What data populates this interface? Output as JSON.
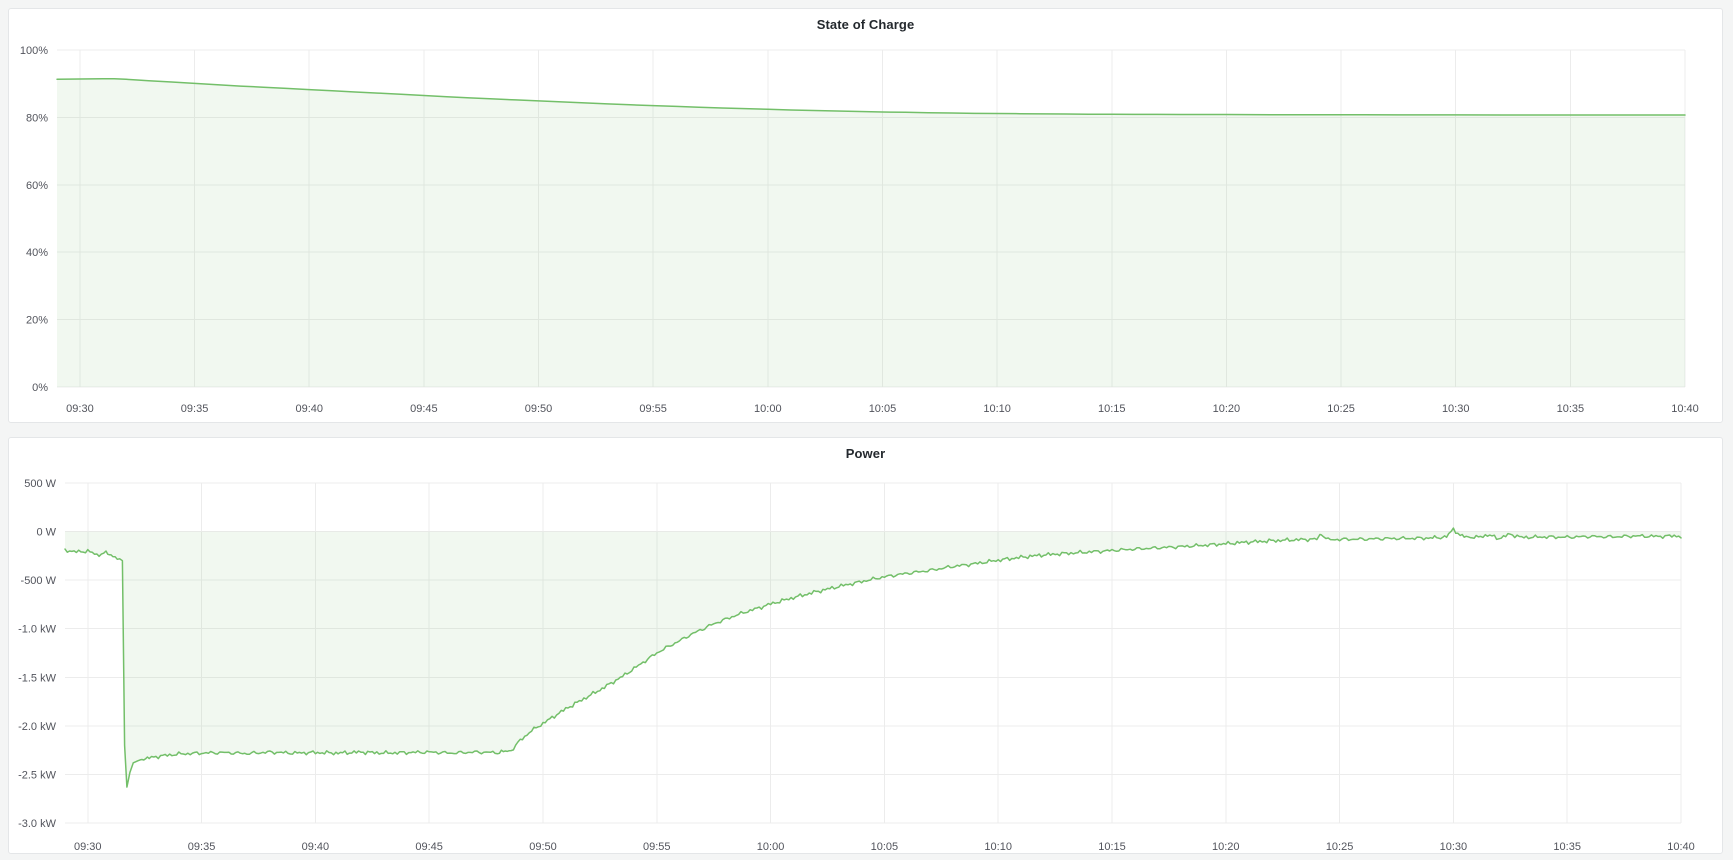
{
  "app": {
    "page_background": "#f4f5f5",
    "panel_background": "#ffffff",
    "panel_border_color": "#e4e6e8",
    "grid_color": "#ececec",
    "axis_text_color": "#52545c",
    "title_text_color": "#24292e",
    "accent_green": "#73bf69"
  },
  "chart_data": [
    {
      "type": "area",
      "title": "State of Charge",
      "unit": "percent",
      "legend": "none",
      "grid": true,
      "ylim": [
        0,
        100
      ],
      "x_domain_minutes_after_0930": [
        -1,
        70
      ],
      "x_tick_minutes": [
        0,
        5,
        10,
        15,
        20,
        25,
        30,
        35,
        40,
        45,
        50,
        55,
        60,
        65,
        70
      ],
      "x_tick_labels": [
        "09:30",
        "09:35",
        "09:40",
        "09:45",
        "09:50",
        "09:55",
        "10:00",
        "10:05",
        "10:10",
        "10:15",
        "10:20",
        "10:25",
        "10:30",
        "10:35",
        "10:40"
      ],
      "y_tick_values": [
        0,
        20,
        40,
        60,
        80,
        100
      ],
      "y_tick_labels": [
        "0%",
        "20%",
        "40%",
        "60%",
        "80%",
        "100%"
      ],
      "line_color": "#73bf69",
      "fill_color_rgba": "rgba(115,191,105,0.10)",
      "fill_to_value": 0,
      "x_minutes": [
        -1,
        0,
        1,
        1.5,
        2,
        2.5,
        3,
        4,
        5,
        6,
        7,
        8,
        9,
        10,
        11,
        12,
        13,
        14,
        15,
        16,
        17,
        18,
        19,
        20,
        21,
        22,
        23,
        24,
        25,
        26,
        27,
        28,
        29,
        30,
        31,
        32,
        33,
        34,
        35,
        36,
        37,
        38,
        39,
        40,
        41,
        42,
        43,
        44,
        45,
        46,
        47,
        48,
        49,
        50,
        52,
        54,
        56,
        58,
        60,
        62,
        64,
        66,
        68,
        70
      ],
      "values": [
        91.35,
        91.4,
        91.45,
        91.45,
        91.3,
        91.1,
        90.9,
        90.5,
        90.1,
        89.7,
        89.3,
        88.95,
        88.6,
        88.25,
        87.9,
        87.55,
        87.2,
        86.85,
        86.5,
        86.15,
        85.8,
        85.5,
        85.2,
        84.9,
        84.6,
        84.3,
        84.0,
        83.75,
        83.5,
        83.25,
        83.0,
        82.8,
        82.6,
        82.4,
        82.2,
        82.05,
        81.9,
        81.75,
        81.6,
        81.5,
        81.4,
        81.3,
        81.2,
        81.15,
        81.1,
        81.05,
        81.0,
        80.95,
        80.95,
        80.9,
        80.9,
        80.85,
        80.85,
        80.85,
        80.8,
        80.8,
        80.8,
        80.75,
        80.75,
        80.7,
        80.7,
        80.7,
        80.7,
        80.7
      ]
    },
    {
      "type": "area",
      "title": "Power",
      "unit": "watt",
      "legend": "none",
      "grid": true,
      "ylim": [
        -3000,
        500
      ],
      "x_domain_minutes_after_0930": [
        -1,
        70
      ],
      "x_tick_minutes": [
        0,
        5,
        10,
        15,
        20,
        25,
        30,
        35,
        40,
        45,
        50,
        55,
        60,
        65,
        70
      ],
      "x_tick_labels": [
        "09:30",
        "09:35",
        "09:40",
        "09:45",
        "09:50",
        "09:55",
        "10:00",
        "10:05",
        "10:10",
        "10:15",
        "10:20",
        "10:25",
        "10:30",
        "10:35",
        "10:40"
      ],
      "y_tick_values": [
        500,
        0,
        -500,
        -1000,
        -1500,
        -2000,
        -2500,
        -3000
      ],
      "y_tick_labels": [
        "500 W",
        "0 W",
        "-500 W",
        "-1.0 kW",
        "-1.5 kW",
        "-2.0 kW",
        "-2.5 kW",
        "-3.0 kW"
      ],
      "line_color": "#73bf69",
      "fill_color_rgba": "rgba(115,191,105,0.10)",
      "fill_to_value": 0,
      "noise": {
        "amplitude_w": 24,
        "suppressed_between_minutes": [
          1.35,
          2.4
        ]
      },
      "x_minutes": [
        -1,
        -0.5,
        0,
        0.4,
        0.8,
        1.1,
        1.4,
        1.52,
        1.62,
        1.72,
        1.85,
        2.0,
        2.3,
        2.7,
        3.2,
        4,
        5,
        6,
        7,
        8,
        9,
        10,
        11,
        12,
        13,
        14,
        15,
        16,
        17,
        18,
        18.6,
        19,
        19.5,
        20,
        20.5,
        21,
        21.5,
        22,
        22.5,
        23,
        23.5,
        24,
        24.5,
        25,
        25.5,
        26,
        26.5,
        27,
        27.5,
        28,
        28.5,
        29,
        29.5,
        30,
        31,
        32,
        33,
        34,
        35,
        36,
        37,
        38,
        39,
        40,
        41,
        42,
        43,
        44,
        45,
        46,
        47,
        48,
        49,
        50,
        51,
        52,
        53,
        54,
        54.2,
        54.5,
        55,
        56,
        57,
        58,
        59,
        59.7,
        60,
        60.3,
        61,
        61.5,
        62,
        62.5,
        63,
        64,
        65,
        66,
        67,
        68,
        69,
        70
      ],
      "values": [
        -190,
        -210,
        -200,
        -240,
        -220,
        -250,
        -280,
        -300,
        -2200,
        -2630,
        -2480,
        -2380,
        -2350,
        -2330,
        -2310,
        -2290,
        -2280,
        -2275,
        -2285,
        -2270,
        -2280,
        -2275,
        -2280,
        -2270,
        -2280,
        -2275,
        -2270,
        -2280,
        -2270,
        -2275,
        -2255,
        -2150,
        -2050,
        -1975,
        -1900,
        -1825,
        -1760,
        -1695,
        -1630,
        -1560,
        -1490,
        -1410,
        -1330,
        -1250,
        -1185,
        -1125,
        -1060,
        -1005,
        -950,
        -905,
        -860,
        -820,
        -785,
        -745,
        -680,
        -620,
        -565,
        -515,
        -465,
        -430,
        -400,
        -360,
        -330,
        -295,
        -265,
        -240,
        -225,
        -210,
        -195,
        -180,
        -168,
        -155,
        -142,
        -125,
        -108,
        -95,
        -85,
        -78,
        -25,
        -85,
        -80,
        -78,
        -72,
        -70,
        -66,
        -55,
        30,
        -45,
        -62,
        -35,
        -70,
        -28,
        -60,
        -55,
        -58,
        -50,
        -55,
        -45,
        -50,
        -42,
        -65
      ]
    }
  ]
}
